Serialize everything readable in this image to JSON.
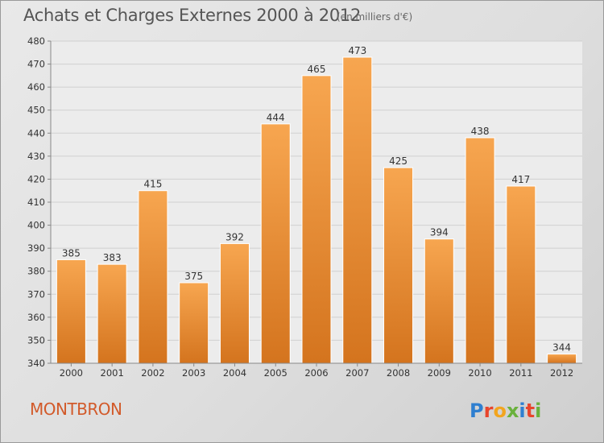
{
  "header": {
    "title": "Achats et Charges Externes 2000 à 2012",
    "subtitle": "(en milliers d'€)"
  },
  "footer": {
    "place": "MONTBRON",
    "logo_text": "Proxiti"
  },
  "colors": {
    "bar_light": "#f7a34f",
    "bar_dark": "#d5761f",
    "place_text": "#d25a2a"
  },
  "chart_data": {
    "type": "bar",
    "title": "Achats et Charges Externes 2000 à 2012",
    "subtitle": "(en milliers d'€)",
    "categories": [
      "2000",
      "2001",
      "2002",
      "2003",
      "2004",
      "2005",
      "2006",
      "2007",
      "2008",
      "2009",
      "2010",
      "2011",
      "2012"
    ],
    "values": [
      385,
      383,
      415,
      375,
      392,
      444,
      465,
      473,
      425,
      394,
      438,
      417,
      344
    ],
    "ylim": [
      340,
      480
    ],
    "yticks": [
      340,
      350,
      360,
      370,
      380,
      390,
      400,
      410,
      420,
      430,
      440,
      450,
      460,
      470,
      480
    ],
    "grid": true,
    "data_labels": true
  }
}
